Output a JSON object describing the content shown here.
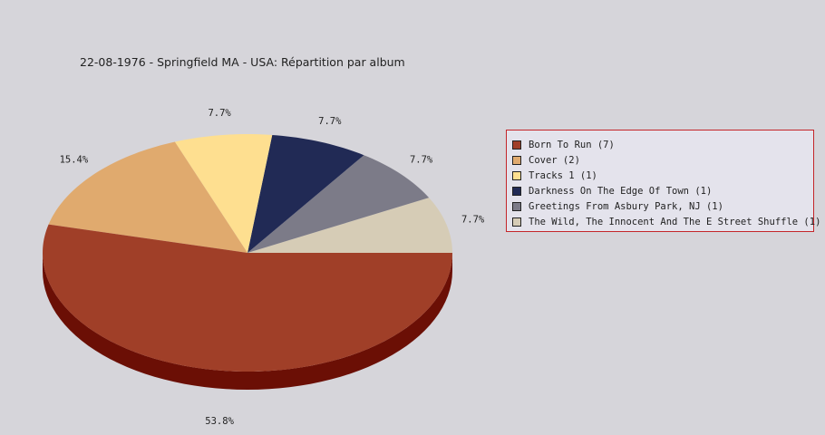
{
  "chart_data": {
    "type": "pie",
    "title": "22-08-1976 - Springfield MA - USA:  Répartition par album",
    "slices": [
      {
        "label": "Born To Run (7)",
        "value": 7,
        "percent_label": "53.8%",
        "color": "#a03f28",
        "side_color": "#6b0f05"
      },
      {
        "label": "Cover (2)",
        "value": 2,
        "percent_label": "15.4%",
        "color": "#e0aa6e",
        "side_color": "#9a6c3a"
      },
      {
        "label": "Tracks 1 (1)",
        "value": 1,
        "percent_label": "7.7%",
        "color": "#fedf90",
        "side_color": "#b59a55"
      },
      {
        "label": "Darkness On The Edge Of Town (1)",
        "value": 1,
        "percent_label": "7.7%",
        "color": "#212a55",
        "side_color": "#10152e"
      },
      {
        "label": "Greetings From Asbury Park, NJ (1)",
        "value": 1,
        "percent_label": "7.7%",
        "color": "#7c7b88",
        "side_color": "#4c4b55"
      },
      {
        "label": "The Wild, The Innocent And The E Street Shuffle (1)",
        "value": 1,
        "percent_label": "7.7%",
        "color": "#d6ccb6",
        "side_color": "#9a917c"
      }
    ],
    "legend_position": "right"
  }
}
